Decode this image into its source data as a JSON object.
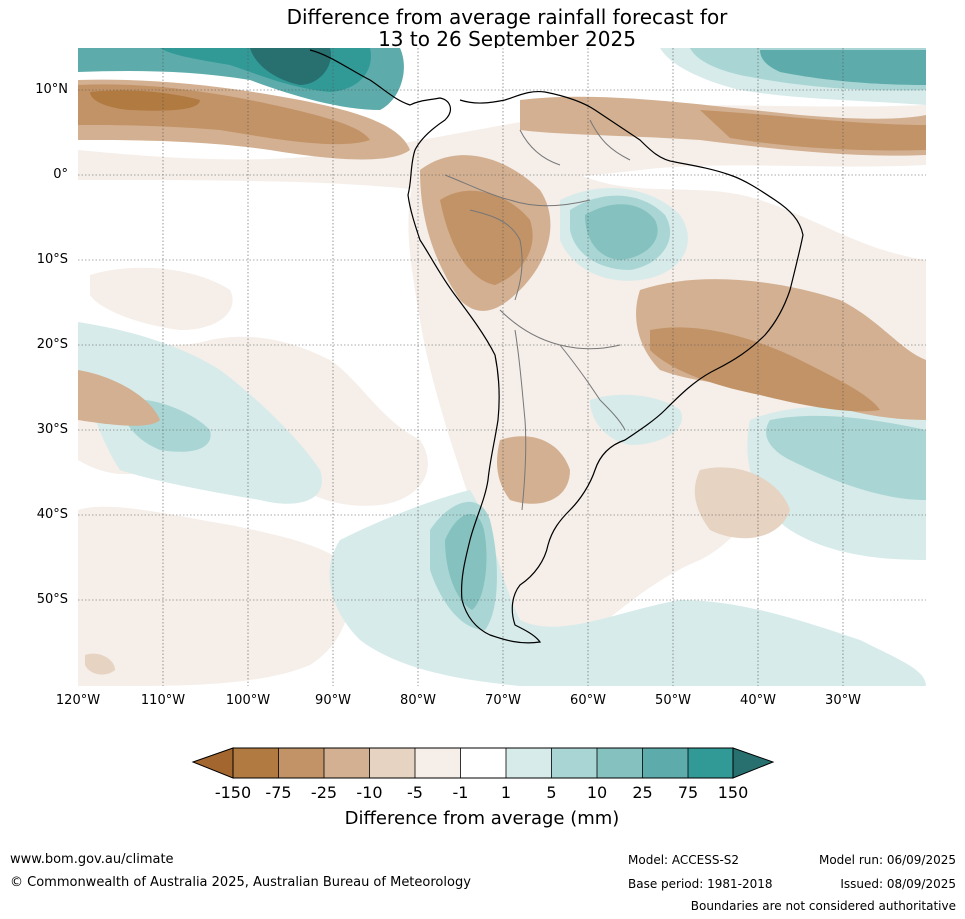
{
  "title": {
    "line1": "Difference from average rainfall forecast for",
    "line2": "13 to 26 September 2025"
  },
  "map": {
    "region": "South America",
    "lon_range": [
      -120,
      -20
    ],
    "lat_range": [
      -60,
      15
    ],
    "lat_labels": [
      "10°N",
      "0°",
      "10°S",
      "20°S",
      "30°S",
      "40°S",
      "50°S"
    ],
    "lon_labels": [
      "120°W",
      "110°W",
      "100°W",
      "90°W",
      "80°W",
      "70°W",
      "60°W",
      "50°W",
      "40°W",
      "30°W"
    ],
    "colors": {
      "dry_150": "#a4662f",
      "dry_75": "#b07a41",
      "dry_25": "#c29367",
      "dry_10": "#d3b091",
      "dry_5": "#e6d3c1",
      "dry_1": "#f5eee9",
      "neutral": "#ffffff",
      "wet_1": "#d6ebea",
      "wet_5": "#a9d6d4",
      "wet_10": "#84c1bf",
      "wet_25": "#5dacab",
      "wet_75": "#319a97",
      "wet_150": "#27706f"
    }
  },
  "legend": {
    "ticks": [
      "-150",
      "-75",
      "-25",
      "-10",
      "-5",
      "-1",
      "1",
      "5",
      "10",
      "25",
      "75",
      "150"
    ],
    "title": "Difference from average (mm)"
  },
  "footer": {
    "website": "www.bom.gov.au/climate",
    "copyright": "© Commonwealth of Australia 2025, Australian Bureau of Meteorology",
    "model": "Model: ACCESS-S2",
    "base_period": "Base period: 1981-2018",
    "model_run": "Model run: 06/09/2025",
    "issued": "Issued: 08/09/2025",
    "disclaimer": "Boundaries are not considered authoritative"
  }
}
